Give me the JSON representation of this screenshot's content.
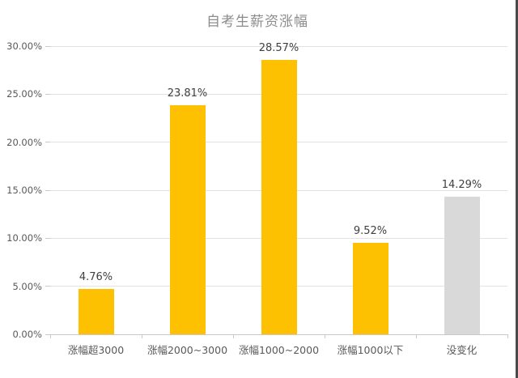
{
  "title": "自考生薪资涨幅",
  "colors": {
    "bar_accent": "#fdc101",
    "bar_muted": "#d9d9d9",
    "gridline": "#e2e2e2",
    "axis_line": "#c9c9c9",
    "title_text": "#8c8c8c",
    "axis_text": "#595959",
    "data_label_text": "#3f3f3f",
    "screenshot_right_edge": "#4a4a4a"
  },
  "chart_data": {
    "type": "bar",
    "title": "自考生薪资涨幅",
    "categories": [
      "涨幅超3000",
      "涨幅2000~3000",
      "涨幅1000~2000",
      "涨幅1000以下",
      "没变化"
    ],
    "values": [
      4.76,
      23.81,
      28.57,
      9.52,
      14.29
    ],
    "value_labels": [
      "4.76%",
      "23.81%",
      "28.57%",
      "9.52%",
      "14.29%"
    ],
    "bar_colors": [
      "#fdc101",
      "#fdc101",
      "#fdc101",
      "#fdc101",
      "#d9d9d9"
    ],
    "xlabel": "",
    "ylabel": "",
    "ylim": [
      0,
      30
    ],
    "ytick_step": 5,
    "ytick_labels": [
      "0.00%",
      "5.00%",
      "10.00%",
      "15.00%",
      "20.00%",
      "25.00%",
      "30.00%"
    ],
    "grid": true,
    "legend_position": "none"
  }
}
